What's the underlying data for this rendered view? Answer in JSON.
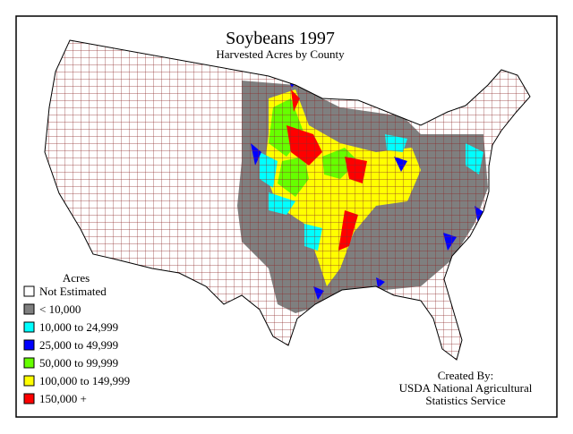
{
  "title": "Soybeans 1997",
  "subtitle": "Harvested Acres by County",
  "legend": {
    "title": "Acres",
    "items": [
      {
        "label": "Not Estimated",
        "color": "#ffffff"
      },
      {
        "label": "< 10,000",
        "color": "#7f7f7f"
      },
      {
        "label": "10,000 to 24,999",
        "color": "#00ffff"
      },
      {
        "label": "25,000 to 49,999",
        "color": "#0000ff"
      },
      {
        "label": "50,000 to 99,999",
        "color": "#66ff00"
      },
      {
        "label": "100,000 to 149,999",
        "color": "#ffff00"
      },
      {
        "label": "150,000 +",
        "color": "#ff0000"
      }
    ]
  },
  "credit": [
    "Created By:",
    "USDA National Agricultural",
    "Statistics Service"
  ]
}
